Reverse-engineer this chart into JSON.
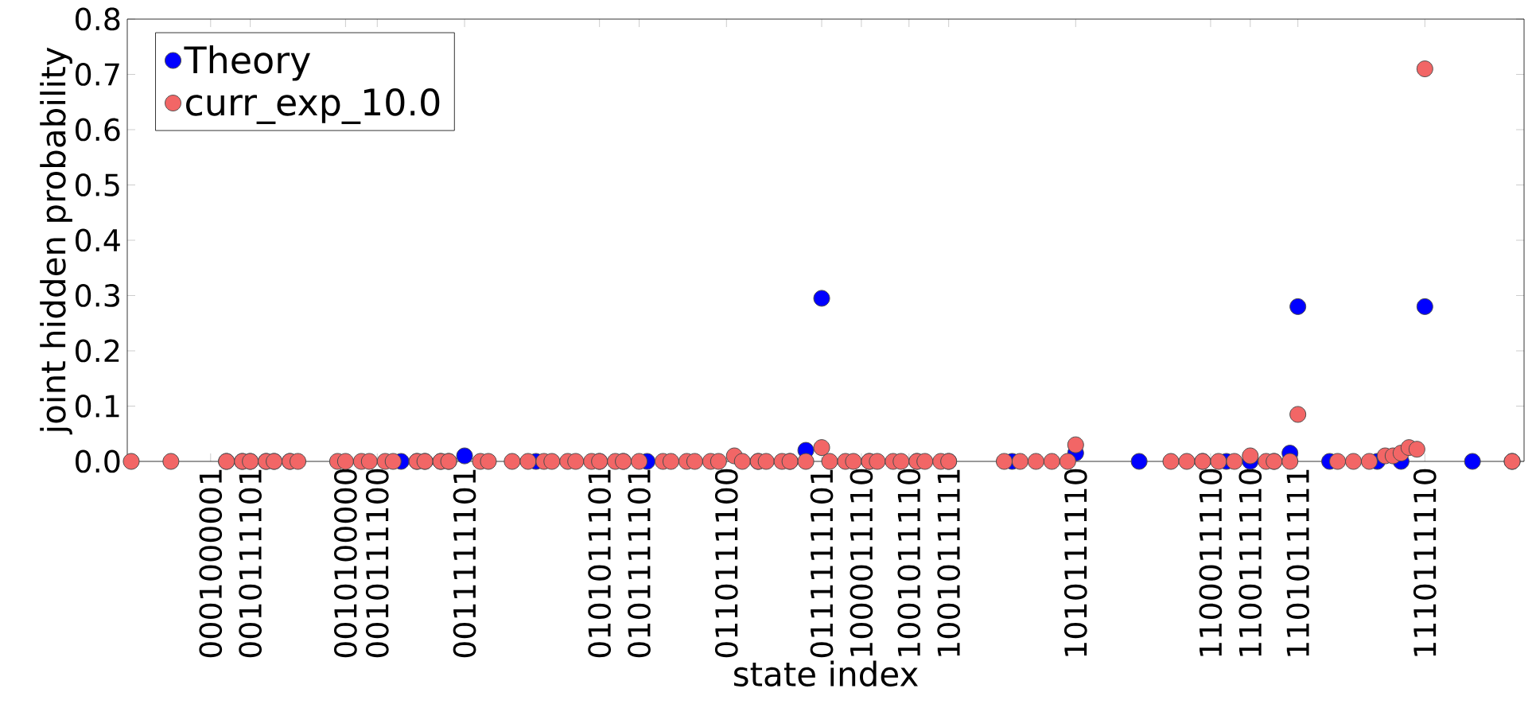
{
  "chart_data": {
    "type": "scatter",
    "xlabel": "state index",
    "ylabel": "joint hidden probability",
    "categories": [
      null,
      null,
      null,
      null,
      null,
      null,
      null,
      null,
      null,
      null,
      "0001000001",
      null,
      null,
      null,
      null,
      "0010111101",
      null,
      null,
      null,
      null,
      null,
      null,
      null,
      null,
      null,
      null,
      null,
      "0010100000",
      null,
      null,
      null,
      "0010111100",
      null,
      null,
      null,
      null,
      null,
      null,
      null,
      null,
      null,
      null,
      "0011111101",
      null,
      null,
      null,
      null,
      null,
      null,
      null,
      null,
      null,
      null,
      null,
      null,
      null,
      null,
      null,
      null,
      "0101011101",
      null,
      null,
      null,
      null,
      "0101111101",
      null,
      null,
      null,
      null,
      null,
      null,
      null,
      null,
      null,
      null,
      "0110111100",
      null,
      null,
      null,
      null,
      null,
      null,
      null,
      null,
      null,
      null,
      null,
      "0111111101",
      null,
      null,
      null,
      null,
      "1000011110",
      null,
      null,
      null,
      null,
      null,
      "1001011110",
      null,
      null,
      null,
      null,
      "1001011111",
      null,
      null,
      null,
      null,
      null,
      null,
      null,
      null,
      null,
      null,
      null,
      null,
      null,
      null,
      null,
      "1010111110",
      null,
      null,
      null,
      null,
      null,
      null,
      null,
      null,
      null,
      null,
      null,
      null,
      null,
      null,
      null,
      null,
      "1100011110",
      null,
      null,
      null,
      null,
      "1100111110",
      null,
      null,
      null,
      null,
      null,
      "1101011111",
      null,
      null,
      null,
      null,
      null,
      null,
      null,
      null,
      null,
      null,
      null,
      null,
      null,
      null,
      null,
      "1110111110",
      null,
      null,
      null,
      null,
      null,
      null,
      null,
      null,
      null,
      null,
      null,
      null
    ],
    "ylim": [
      0,
      0.8
    ],
    "yticks": [
      {
        "value": 0,
        "label": "0.0"
      },
      0.1,
      0.2,
      0.3,
      0.4,
      0.5,
      0.6,
      0.7,
      0.8
    ],
    "legend": "top left",
    "marker": "circle",
    "grid": false,
    "series": [
      {
        "name": "Theory",
        "color": "#0000ff",
        "values": [
          null,
          null,
          null,
          null,
          null,
          null,
          null,
          null,
          null,
          null,
          null,
          null,
          0,
          null,
          0,
          0,
          null,
          0,
          0,
          null,
          0,
          null,
          null,
          null,
          null,
          null,
          null,
          null,
          null,
          null,
          null,
          null,
          null,
          null,
          0,
          null,
          0,
          0,
          null,
          0,
          0,
          null,
          0.01,
          null,
          null,
          null,
          null,
          null,
          null,
          null,
          null,
          0,
          null,
          null,
          null,
          null,
          null,
          null,
          null,
          0,
          null,
          null,
          0,
          null,
          null,
          0,
          null,
          null,
          null,
          null,
          null,
          null,
          null,
          null,
          null,
          null,
          null,
          null,
          null,
          0,
          null,
          null,
          null,
          0,
          null,
          0.02,
          null,
          0.295,
          null,
          null,
          null,
          null,
          null,
          0,
          null,
          null,
          null,
          null,
          null,
          0,
          null,
          null,
          null,
          0,
          null,
          null,
          null,
          null,
          null,
          null,
          null,
          0,
          null,
          null,
          null,
          null,
          null,
          null,
          null,
          0.015,
          null,
          null,
          null,
          null,
          null,
          null,
          null,
          0,
          null,
          null,
          null,
          null,
          null,
          null,
          null,
          0,
          null,
          null,
          0,
          null,
          null,
          0,
          null,
          null,
          0,
          null,
          0.015,
          0.28,
          null,
          null,
          null,
          0,
          null,
          null,
          null,
          null,
          null,
          0,
          null,
          null,
          0,
          null,
          null,
          0.28,
          null,
          null,
          null,
          null,
          null,
          0,
          null,
          null,
          null,
          null,
          0,
          null
        ]
      },
      {
        "name": "curr_exp_10.0",
        "color": "#f26666",
        "values": [
          0,
          null,
          null,
          null,
          null,
          0,
          null,
          null,
          null,
          null,
          null,
          null,
          0,
          null,
          0,
          0,
          null,
          0,
          0,
          null,
          0,
          0,
          null,
          null,
          null,
          null,
          0,
          0,
          null,
          0,
          0,
          null,
          0,
          0,
          null,
          null,
          0,
          0,
          null,
          0,
          0,
          null,
          null,
          null,
          0,
          0,
          null,
          null,
          0,
          null,
          0,
          null,
          0,
          0,
          null,
          0,
          0,
          null,
          0,
          0,
          null,
          0,
          0,
          null,
          0,
          null,
          null,
          0,
          0,
          null,
          0,
          0,
          null,
          0,
          0,
          null,
          0.01,
          0,
          null,
          0,
          0,
          null,
          0,
          0,
          null,
          0,
          null,
          0.025,
          0,
          null,
          0,
          0,
          null,
          0,
          0,
          null,
          0,
          0,
          null,
          0,
          0,
          null,
          0,
          0,
          null,
          null,
          null,
          null,
          null,
          null,
          0,
          null,
          0,
          null,
          0,
          null,
          0,
          null,
          0,
          0.03,
          null,
          null,
          null,
          null,
          null,
          null,
          null,
          null,
          null,
          null,
          null,
          0,
          null,
          0,
          null,
          0,
          null,
          0,
          null,
          0,
          null,
          0.01,
          null,
          0,
          0,
          null,
          0,
          0.085,
          null,
          null,
          null,
          null,
          0,
          null,
          0,
          null,
          0,
          null,
          0.01,
          0.01,
          0.015,
          0.025,
          0.022,
          0.71,
          null,
          null,
          null,
          null,
          null,
          null,
          null,
          null,
          null,
          null,
          0,
          null
        ]
      }
    ]
  }
}
